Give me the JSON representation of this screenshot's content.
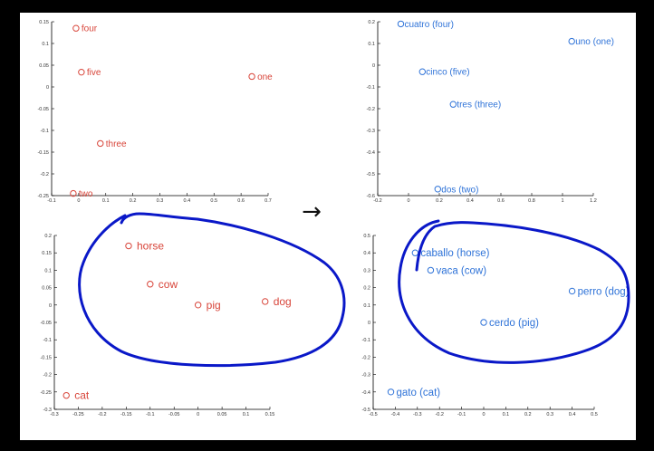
{
  "arrow": "→",
  "colors": {
    "english": "#d8453a",
    "spanish": "#2f73d8",
    "annotation": "#0a18c8"
  },
  "chart_data": [
    {
      "id": "top-left",
      "type": "scatter",
      "color": "#d8453a",
      "xlim": [
        -0.1,
        0.7
      ],
      "ylim": [
        -0.25,
        0.15
      ],
      "xticks": [
        -0.1,
        0,
        0.1,
        0.2,
        0.3,
        0.4,
        0.5,
        0.6,
        0.7
      ],
      "xtick_labels": [
        "-0.1",
        "0",
        "0.1",
        "0.2",
        "0.3",
        "0.4",
        "0.5",
        "0.6",
        "0.7"
      ],
      "yticks": [
        0.15,
        0.1,
        0.05,
        0,
        -0.05,
        -0.1,
        -0.15,
        -0.2,
        -0.25
      ],
      "ytick_labels": [
        "0.15",
        "0.1",
        "0.05",
        "0",
        "-0.05",
        "-0.1",
        "-0.15",
        "-0.2",
        "-0.25"
      ],
      "points": [
        {
          "x": -0.01,
          "y": 0.135,
          "label": "four"
        },
        {
          "x": 0.01,
          "y": 0.034,
          "label": "five"
        },
        {
          "x": 0.64,
          "y": 0.024,
          "label": "one"
        },
        {
          "x": 0.08,
          "y": -0.13,
          "label": "three"
        },
        {
          "x": -0.02,
          "y": -0.245,
          "label": "two"
        }
      ]
    },
    {
      "id": "top-right",
      "type": "scatter",
      "color": "#2f73d8",
      "xlim": [
        -0.2,
        1.2
      ],
      "ylim": [
        -0.6,
        0.2
      ],
      "xticks": [
        -0.2,
        0,
        0.2,
        0.4,
        0.6,
        0.8,
        1,
        1.2
      ],
      "xtick_labels": [
        "-0.2",
        "0",
        "0.2",
        "0.4",
        "0.6",
        "0.8",
        "1",
        "1.2"
      ],
      "yticks": [
        0.2,
        0.1,
        0,
        -0.1,
        -0.2,
        -0.3,
        -0.4,
        -0.5,
        -0.6
      ],
      "ytick_labels": [
        "0.2",
        "0.1",
        "0",
        "-0.1",
        "-0.2",
        "-0.3",
        "-0.4",
        "-0.5",
        "-0.6"
      ],
      "points": [
        {
          "x": -0.05,
          "y": 0.19,
          "label": "cuatro (four)"
        },
        {
          "x": 1.06,
          "y": 0.11,
          "label": "uno (one)"
        },
        {
          "x": 0.09,
          "y": -0.03,
          "label": "cinco (five)"
        },
        {
          "x": 0.29,
          "y": -0.18,
          "label": "tres (three)"
        },
        {
          "x": 0.19,
          "y": -0.57,
          "label": "dos (two)"
        }
      ]
    },
    {
      "id": "bottom-left",
      "type": "scatter",
      "color": "#d8453a",
      "xlim": [
        -0.3,
        0.15
      ],
      "ylim": [
        -0.3,
        0.2
      ],
      "xticks": [
        -0.3,
        -0.25,
        -0.2,
        -0.15,
        -0.1,
        -0.05,
        0,
        0.05,
        0.1,
        0.15
      ],
      "xtick_labels": [
        "-0.3",
        "-0.25",
        "-0.2",
        "-0.15",
        "-0.1",
        "-0.05",
        "0",
        "0.05",
        "0.1",
        "0.15"
      ],
      "yticks": [
        0.2,
        0.15,
        0.1,
        0.05,
        0,
        -0.05,
        -0.1,
        -0.15,
        -0.2,
        -0.25,
        -0.3
      ],
      "ytick_labels": [
        "0.2",
        "0.15",
        "0.1",
        "0.05",
        "0",
        "-0.05",
        "-0.1",
        "-0.15",
        "-0.2",
        "-0.25",
        "-0.3"
      ],
      "points": [
        {
          "x": -0.145,
          "y": 0.17,
          "label": "horse"
        },
        {
          "x": -0.1,
          "y": 0.06,
          "label": "cow"
        },
        {
          "x": 0,
          "y": 0,
          "label": "pig"
        },
        {
          "x": 0.14,
          "y": 0.01,
          "label": "dog"
        },
        {
          "x": -0.275,
          "y": -0.26,
          "label": "cat"
        }
      ]
    },
    {
      "id": "bottom-right",
      "type": "scatter",
      "color": "#2f73d8",
      "xlim": [
        -0.5,
        0.5
      ],
      "ylim": [
        -0.5,
        0.5
      ],
      "xticks": [
        -0.5,
        -0.4,
        -0.3,
        -0.2,
        -0.1,
        0,
        0.1,
        0.2,
        0.3,
        0.4,
        0.5
      ],
      "xtick_labels": [
        "-0.5",
        "-0.4",
        "-0.3",
        "-0.2",
        "-0.1",
        "0",
        "0.1",
        "0.2",
        "0.3",
        "0.4",
        "0.5"
      ],
      "yticks": [
        0.5,
        0.4,
        0.3,
        0.2,
        0.1,
        0,
        -0.1,
        -0.2,
        -0.3,
        -0.4,
        -0.5
      ],
      "ytick_labels": [
        "0.5",
        "0.4",
        "0.3",
        "0.2",
        "0.1",
        "0",
        "-0.1",
        "-0.2",
        "-0.3",
        "-0.4",
        "-0.5"
      ],
      "points": [
        {
          "x": -0.31,
          "y": 0.4,
          "label": "caballo (horse)"
        },
        {
          "x": -0.24,
          "y": 0.3,
          "label": "vaca (cow)"
        },
        {
          "x": 0.4,
          "y": 0.18,
          "label": "perro (dog)"
        },
        {
          "x": 0,
          "y": 0,
          "label": "cerdo (pig)"
        },
        {
          "x": -0.42,
          "y": -0.4,
          "label": "gato (cat)"
        }
      ]
    }
  ]
}
